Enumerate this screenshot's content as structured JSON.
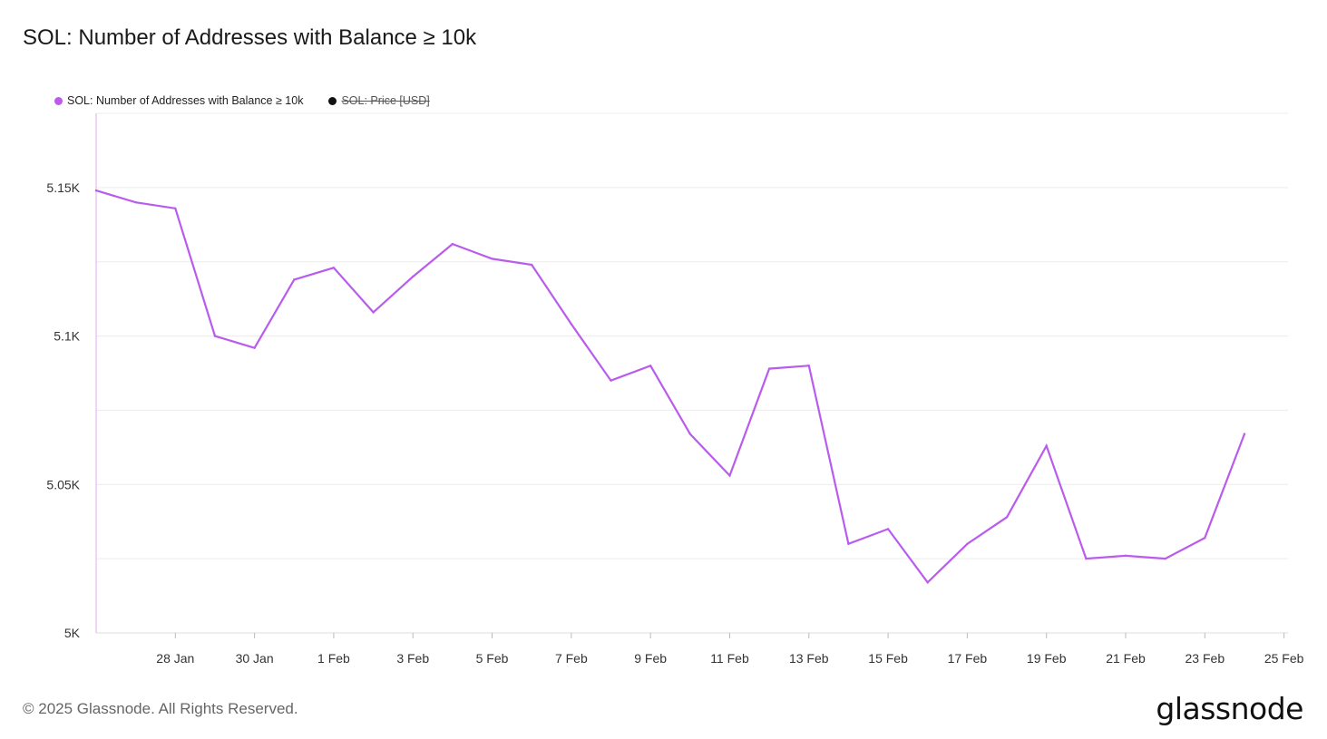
{
  "title": "SOL: Number of Addresses with Balance ≥ 10k",
  "legend": [
    {
      "label": "SOL: Number of Addresses with Balance ≥ 10k",
      "color": "#b95ced",
      "enabled": true
    },
    {
      "label": "SOL: Price [USD]",
      "color": "#111111",
      "enabled": false
    }
  ],
  "footer": "© 2025 Glassnode. All Rights Reserved.",
  "logo": "glassnode",
  "chart_data": {
    "type": "line",
    "series": [
      {
        "name": "SOL: Number of Addresses with Balance ≥ 10k",
        "color": "#b95ced",
        "x": [
          "26 Jan",
          "27 Jan",
          "28 Jan",
          "29 Jan",
          "30 Jan",
          "31 Jan",
          "1 Feb",
          "2 Feb",
          "3 Feb",
          "4 Feb",
          "5 Feb",
          "6 Feb",
          "7 Feb",
          "8 Feb",
          "9 Feb",
          "10 Feb",
          "11 Feb",
          "12 Feb",
          "13 Feb",
          "14 Feb",
          "15 Feb",
          "16 Feb",
          "17 Feb",
          "18 Feb",
          "19 Feb",
          "20 Feb",
          "21 Feb",
          "22 Feb",
          "23 Feb",
          "24 Feb"
        ],
        "values": [
          5149,
          5145,
          5143,
          5100,
          5096,
          5119,
          5123,
          5108,
          5120,
          5131,
          5126,
          5124,
          5104,
          5085,
          5090,
          5067,
          5053,
          5089,
          5090,
          5030,
          5035,
          5017,
          5030,
          5039,
          5063,
          5025,
          5026,
          5025,
          5032,
          5067
        ]
      }
    ],
    "x_ticks": [
      "28 Jan",
      "30 Jan",
      "1 Feb",
      "3 Feb",
      "5 Feb",
      "7 Feb",
      "9 Feb",
      "11 Feb",
      "13 Feb",
      "15 Feb",
      "17 Feb",
      "19 Feb",
      "21 Feb",
      "23 Feb",
      "25 Feb"
    ],
    "y_ticks": [
      "5K",
      "5.05K",
      "5.1K",
      "5.15K"
    ],
    "y_tick_values": [
      5000,
      5050,
      5100,
      5150
    ],
    "ylim": [
      5000,
      5175
    ],
    "grid": true,
    "legend_position": "top-left"
  }
}
